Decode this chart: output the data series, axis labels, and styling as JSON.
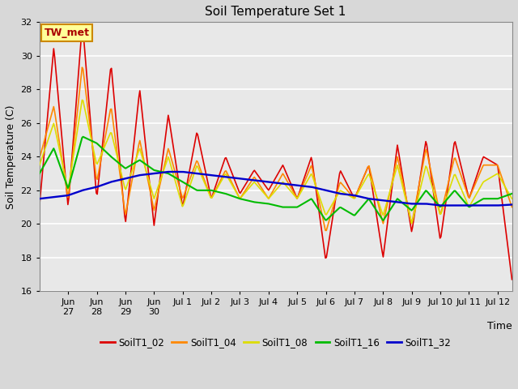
{
  "title": "Soil Temperature Set 1",
  "ylabel": "Soil Temperature (C)",
  "xlabel": "Time",
  "ylim": [
    16,
    32
  ],
  "yticks": [
    16,
    18,
    20,
    22,
    24,
    26,
    28,
    30,
    32
  ],
  "fig_bg": "#d8d8d8",
  "plot_bg": "#e8e8e8",
  "annotation_text": "TW_met",
  "annotation_bg": "#ffff99",
  "annotation_border": "#cc8800",
  "annotation_text_color": "#aa0000",
  "series_colors": {
    "SoilT1_02": "#dd0000",
    "SoilT1_04": "#ff8800",
    "SoilT1_08": "#dddd00",
    "SoilT1_16": "#00bb00",
    "SoilT1_32": "#0000cc"
  },
  "line_width": 1.2,
  "tick_labels": [
    "Jun\n27",
    "Jun\n28",
    "Jun\n29",
    "Jun\n30",
    "Jul 1",
    "Jul 2",
    "Jul 3",
    "Jul 4",
    "Jul 5",
    "Jul 6",
    "Jul 7",
    "Jul 8",
    "Jul 9",
    "Jul 10",
    "Jul 11",
    "Jul 12"
  ]
}
